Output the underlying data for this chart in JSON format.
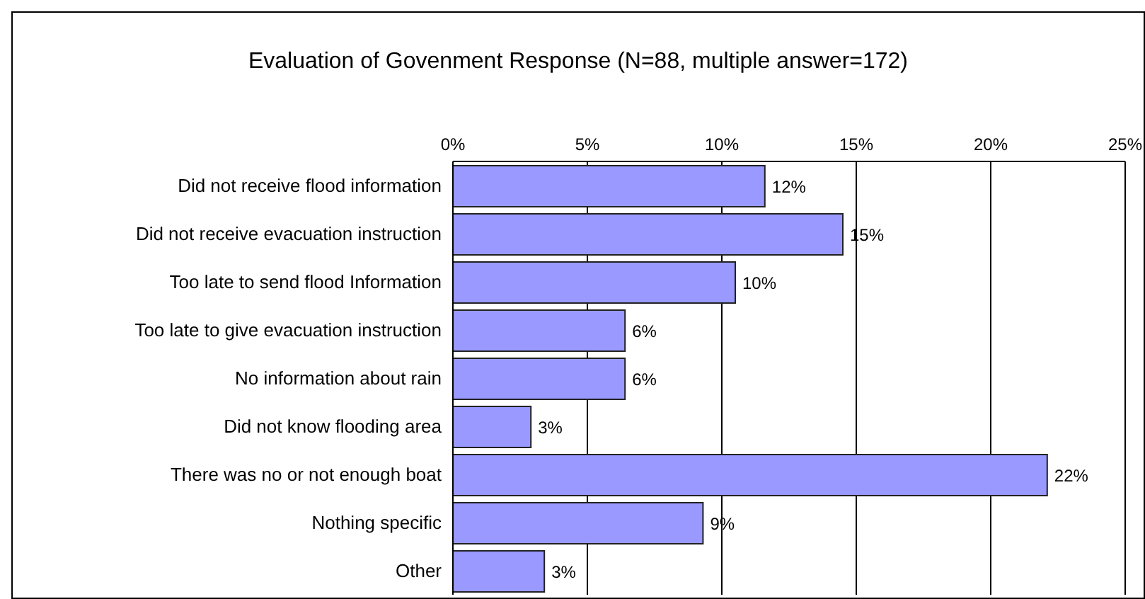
{
  "chart_data": {
    "type": "bar",
    "orientation": "horizontal",
    "title": "Evaluation of Govenment Response (N=88, multiple answer=172)",
    "categories": [
      "Did not receive flood information",
      "Did not receive evacuation instruction",
      "Too late to send flood Information",
      "Too late to give evacuation instruction",
      "No information about rain",
      "Did not know flooding area",
      "There was no or not enough boat ",
      "Nothing specific",
      "Other"
    ],
    "values": [
      11.6,
      14.5,
      10.5,
      6.4,
      6.4,
      2.9,
      22.1,
      9.3,
      3.4
    ],
    "value_labels": [
      "12%",
      "15%",
      "10%",
      "6%",
      "6%",
      "3%",
      "22%",
      "9%",
      "3%"
    ],
    "color": "#9999ff",
    "xlim": [
      0,
      25
    ],
    "xticks": [
      {
        "value": 0,
        "label": "0%"
      },
      {
        "value": 5,
        "label": "5%"
      },
      {
        "value": 10,
        "label": "10%"
      },
      {
        "value": 15,
        "label": "15%"
      },
      {
        "value": 20,
        "label": "20%"
      },
      {
        "value": 25,
        "label": "25%"
      }
    ],
    "grid": "x"
  }
}
